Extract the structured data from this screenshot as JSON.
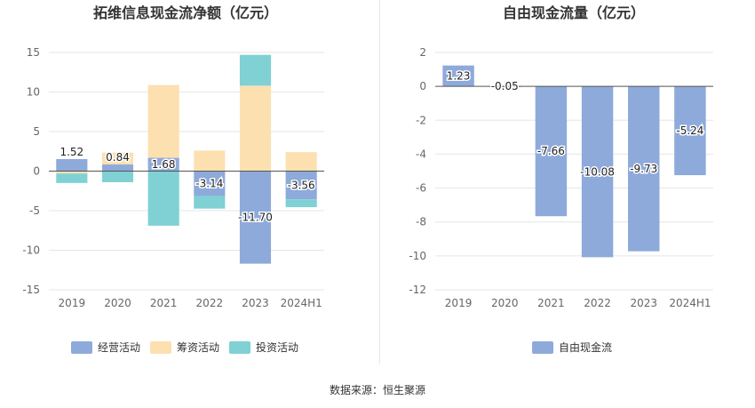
{
  "source_label": "数据来源：恒生聚源",
  "colors": {
    "operating": "#8eaadb",
    "financing": "#fde0b0",
    "investing": "#7fd1d4",
    "free": "#8eaadb"
  },
  "chart_data": [
    {
      "type": "bar",
      "stacked": true,
      "title": "拓维信息现金流净额（亿元）",
      "categories": [
        "2019",
        "2020",
        "2021",
        "2022",
        "2023",
        "2024H1"
      ],
      "ylim": [
        -15,
        15
      ],
      "yticks": [
        15,
        10,
        5,
        0,
        -5,
        -10,
        -15
      ],
      "legend_position": "bottom",
      "series": [
        {
          "name": "经营活动",
          "values": [
            1.52,
            0.84,
            1.68,
            -3.14,
            -11.7,
            -3.56
          ]
        },
        {
          "name": "筹资活动",
          "values": [
            -0.3,
            1.5,
            9.2,
            2.6,
            10.8,
            2.4
          ]
        },
        {
          "name": "投资活动",
          "values": [
            -1.2,
            -1.4,
            -6.9,
            -1.6,
            3.9,
            -1.0
          ]
        }
      ],
      "data_labels": [
        "1.52",
        "0.84",
        "1.68",
        "-3.14",
        "-11.70",
        "-3.56"
      ]
    },
    {
      "type": "bar",
      "title": "自由现金流量（亿元）",
      "categories": [
        "2019",
        "2020",
        "2021",
        "2022",
        "2023",
        "2024H1"
      ],
      "ylim": [
        -12,
        2
      ],
      "yticks": [
        2,
        0,
        -2,
        -4,
        -6,
        -8,
        -10,
        -12
      ],
      "legend_position": "bottom",
      "series": [
        {
          "name": "自由现金流",
          "values": [
            1.23,
            -0.05,
            -7.66,
            -10.08,
            -9.73,
            -5.24
          ]
        }
      ],
      "data_labels": [
        "1.23",
        "-0.05",
        "-7.66",
        "-10.08",
        "-9.73",
        "-5.24"
      ]
    }
  ]
}
